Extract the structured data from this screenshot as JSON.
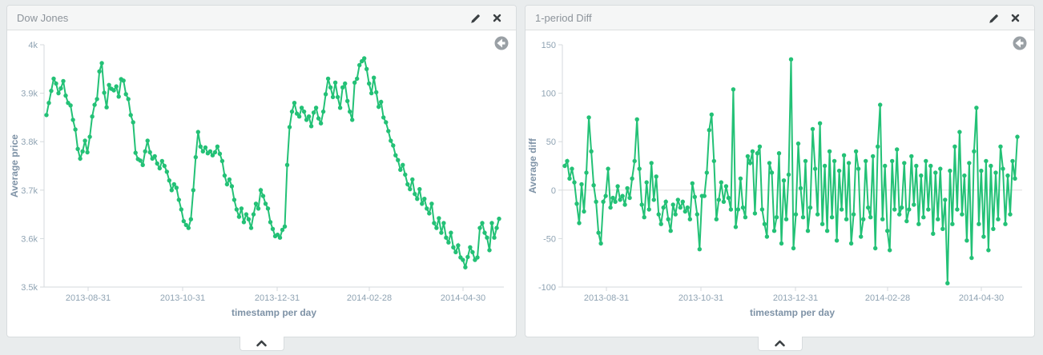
{
  "app": {
    "name": "dashboard"
  },
  "colors": {
    "series_green": "#23c176",
    "page_background": "#e9eced",
    "panel_header_bg": "#f5f6f6",
    "panel_title_text": "#8c939a",
    "axis_text": "#8fa3b3",
    "axis_title_text": "#7e92a6",
    "icon_dark": "#3b4043",
    "reset_icon_gray": "#9aa0a5"
  },
  "panels": [
    {
      "title": "Dow Jones",
      "icons": {
        "edit": "pencil-icon",
        "close": "close-icon",
        "reset": "history-back-icon"
      },
      "collapse_icon": "chevron-up-icon"
    },
    {
      "title": "1-period Diff",
      "icons": {
        "edit": "pencil-icon",
        "close": "close-icon",
        "reset": "history-back-icon"
      },
      "collapse_icon": "chevron-up-icon"
    }
  ],
  "chart_data": [
    {
      "type": "line",
      "title": "Dow Jones",
      "xlabel": "timestamp per day",
      "ylabel": "Average price",
      "x_tick_labels": [
        "2013-08-31",
        "2013-10-31",
        "2013-12-31",
        "2014-02-28",
        "2014-04-30"
      ],
      "y_tick_labels": [
        "4k",
        "3.9k",
        "3.8k",
        "3.7k",
        "3.6k",
        "3.5k"
      ],
      "ylim": [
        3500,
        4000
      ],
      "zero_line": false,
      "legend": "off",
      "grid": "off",
      "values": [
        3855,
        3880,
        3905,
        3930,
        3920,
        3900,
        3910,
        3925,
        3895,
        3880,
        3875,
        3845,
        3825,
        3785,
        3765,
        3780,
        3802,
        3778,
        3810,
        3852,
        3876,
        3888,
        3945,
        3962,
        3901,
        3871,
        3917,
        3909,
        3906,
        3914,
        3893,
        3929,
        3926,
        3898,
        3888,
        3855,
        3840,
        3777,
        3764,
        3761,
        3752,
        3780,
        3802,
        3778,
        3765,
        3770,
        3755,
        3745,
        3760,
        3750,
        3738,
        3720,
        3700,
        3712,
        3705,
        3680,
        3660,
        3636,
        3628,
        3622,
        3640,
        3700,
        3768,
        3820,
        3790,
        3780,
        3788,
        3776,
        3780,
        3772,
        3778,
        3790,
        3775,
        3760,
        3730,
        3712,
        3722,
        3708,
        3680,
        3660,
        3645,
        3662,
        3634,
        3650,
        3640,
        3622,
        3650,
        3672,
        3662,
        3700,
        3688,
        3672,
        3662,
        3634,
        3620,
        3605,
        3608,
        3602,
        3618,
        3625,
        3752,
        3830,
        3862,
        3880,
        3858,
        3852,
        3870,
        3862,
        3845,
        3852,
        3832,
        3860,
        3870,
        3848,
        3838,
        3862,
        3898,
        3930,
        3912,
        3892,
        3922,
        3892,
        3870,
        3912,
        3920,
        3884,
        3862,
        3845,
        3922,
        3930,
        3958,
        3966,
        3972,
        3950,
        3920,
        3900,
        3932,
        3902,
        3872,
        3882,
        3850,
        3840,
        3822,
        3802,
        3792,
        3772,
        3762,
        3742,
        3752,
        3732,
        3712,
        3702,
        3722,
        3692,
        3682,
        3702,
        3672,
        3682,
        3662,
        3652,
        3672,
        3632,
        3622,
        3642,
        3612,
        3632,
        3602,
        3592,
        3612,
        3582,
        3572,
        3586,
        3561,
        3556,
        3541,
        3562,
        3582,
        3572,
        3556,
        3561,
        3622,
        3632,
        3612,
        3602,
        3576,
        3632,
        3602,
        3622,
        3641
      ]
    },
    {
      "type": "line",
      "title": "1-period Diff",
      "xlabel": "timestamp per day",
      "ylabel": "Average diff",
      "x_tick_labels": [
        "2013-08-31",
        "2013-10-31",
        "2013-12-31",
        "2014-02-28",
        "2014-04-30"
      ],
      "y_tick_labels": [
        "150",
        "100",
        "50",
        "0",
        "-50",
        "-100"
      ],
      "ylim": [
        -100,
        150
      ],
      "zero_line": true,
      "legend": "off",
      "grid": "off",
      "values": [
        25,
        30,
        12,
        22,
        8,
        -14,
        -34,
        6,
        -22,
        18,
        75,
        40,
        5,
        -12,
        -44,
        -55,
        -12,
        -6,
        22,
        -18,
        -8,
        -12,
        4,
        -10,
        -6,
        -15,
        2,
        -8,
        12,
        30,
        73,
        22,
        -15,
        -28,
        8,
        -20,
        28,
        -10,
        14,
        -25,
        -35,
        -18,
        -12,
        -30,
        -42,
        -15,
        -25,
        -10,
        -18,
        -12,
        -22,
        -18,
        -30,
        7,
        -7,
        -25,
        -61,
        -6,
        -6,
        18,
        62,
        78,
        30,
        -30,
        -10,
        8,
        -12,
        4,
        -8,
        -20,
        104,
        -38,
        -20,
        12,
        -18,
        -28,
        35,
        28,
        40,
        -24,
        38,
        45,
        -20,
        -35,
        -48,
        28,
        18,
        -42,
        -28,
        38,
        -55,
        10,
        -30,
        16,
        135,
        -60,
        -25,
        48,
        2,
        -28,
        30,
        -42,
        -18,
        63,
        22,
        -25,
        69,
        -35,
        25,
        -42,
        40,
        -28,
        30,
        -52,
        20,
        -20,
        36,
        -30,
        28,
        -55,
        -25,
        40,
        22,
        -48,
        -30,
        30,
        -18,
        -28,
        35,
        -60,
        45,
        88,
        -30,
        25,
        -42,
        -62,
        30,
        -20,
        42,
        -25,
        -18,
        28,
        -32,
        -20,
        35,
        -15,
        25,
        -35,
        15,
        -28,
        30,
        -20,
        25,
        -45,
        18,
        -30,
        22,
        -40,
        -10,
        -96,
        20,
        -35,
        45,
        -20,
        60,
        -25,
        15,
        -52,
        28,
        -70,
        40,
        85,
        -35,
        20,
        -48,
        30,
        -62,
        25,
        -40,
        18,
        -30,
        45,
        22,
        -35,
        15,
        -25,
        30,
        12,
        55
      ]
    }
  ]
}
